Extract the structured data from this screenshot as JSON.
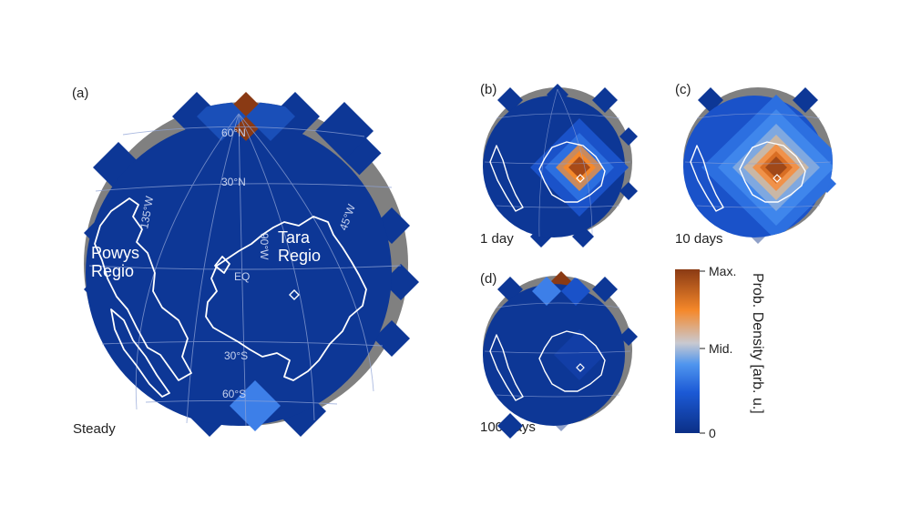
{
  "panels": {
    "a": {
      "tag": "(a)",
      "caption": "Steady"
    },
    "b": {
      "tag": "(b)",
      "caption": "1 day"
    },
    "c": {
      "tag": "(c)",
      "caption": "10 days"
    },
    "d": {
      "tag": "(d)",
      "caption": "100 days"
    }
  },
  "grid_labels": {
    "lat_60n": "60°N",
    "lat_30n": "30°N",
    "equator": "EQ",
    "lat_30s": "30°S",
    "lat_60s": "60°S",
    "lon_135w": "135°W",
    "lon_90w": "90°W",
    "lon_45w": "45°W"
  },
  "regions": {
    "powys_line1": "Powys",
    "powys_line2": "Regio",
    "tara_line1": "Tara",
    "tara_line2": "Regio"
  },
  "colorbar": {
    "title": "Prob. Density [arb. u.]",
    "tick_max": "Max.",
    "tick_mid": "Mid.",
    "tick_zero": "0",
    "colors": [
      "#0b2f86",
      "#1c5ad6",
      "#4f95ee",
      "#c9c9d0",
      "#f5882a",
      "#8a3a14"
    ]
  },
  "colors": {
    "limb": "#808080",
    "background_cell": "#0d3796",
    "coastline": "#ffffff",
    "grid": "#8fa3d6"
  }
}
